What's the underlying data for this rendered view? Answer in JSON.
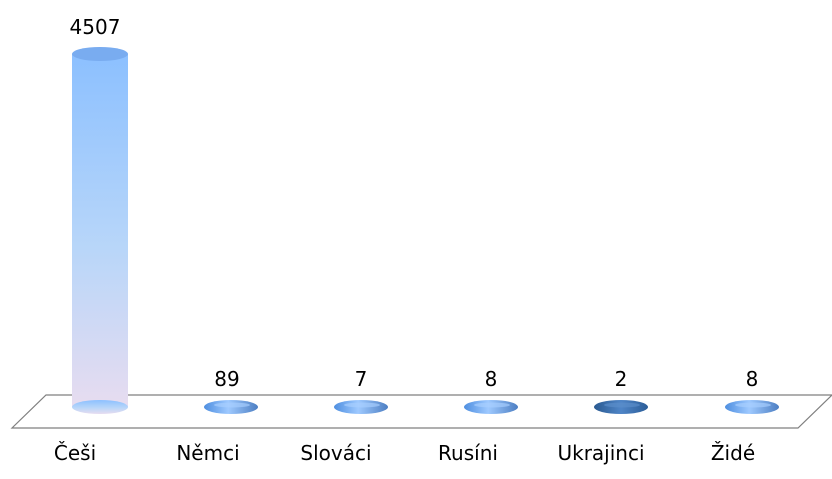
{
  "chart_data": {
    "type": "bar",
    "categories": [
      "Češi",
      "Němci",
      "Slováci",
      "Rusíni",
      "Ukrajinci",
      "Židé"
    ],
    "values": [
      4507,
      89,
      7,
      8,
      2,
      8
    ],
    "value_labels": [
      "4507",
      "89",
      "7",
      "8",
      "2",
      "8"
    ],
    "ylim": [
      0,
      4507
    ],
    "grid": false,
    "legend": "none",
    "colors": {
      "bar_default": "#6f9fe0",
      "bar_highlight": "#2f5f96",
      "floor_stroke": "#7f7f7f"
    }
  }
}
